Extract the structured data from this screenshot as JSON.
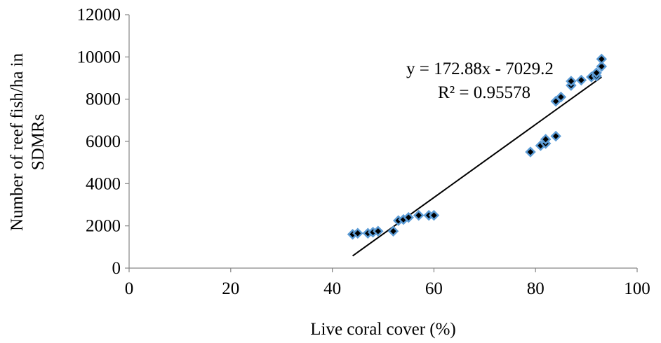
{
  "chart_data": {
    "type": "scatter",
    "title": "",
    "xlabel": "Live coral cover (%)",
    "ylabel_lines": [
      "Number of reef fish/ha in",
      "SDMRs"
    ],
    "xlim": [
      0,
      100
    ],
    "ylim": [
      0,
      12000
    ],
    "xticks": [
      0,
      20,
      40,
      60,
      80,
      100
    ],
    "yticks": [
      0,
      2000,
      4000,
      6000,
      8000,
      10000,
      12000
    ],
    "grid": false,
    "legend": "none",
    "series": [
      {
        "marker": "diamond",
        "marker_fill": "#000000",
        "marker_edge": "#5b9bd5",
        "points": [
          [
            44,
            1600
          ],
          [
            45,
            1650
          ],
          [
            47,
            1650
          ],
          [
            48,
            1700
          ],
          [
            49,
            1750
          ],
          [
            52,
            1750
          ],
          [
            53,
            2250
          ],
          [
            54,
            2300
          ],
          [
            55,
            2400
          ],
          [
            57,
            2500
          ],
          [
            59,
            2500
          ],
          [
            60,
            2500
          ],
          [
            79,
            5500
          ],
          [
            81,
            5800
          ],
          [
            82,
            5900
          ],
          [
            82,
            6100
          ],
          [
            84,
            6250
          ],
          [
            84,
            7900
          ],
          [
            85,
            8100
          ],
          [
            87,
            8650
          ],
          [
            87,
            8850
          ],
          [
            89,
            8900
          ],
          [
            91,
            9050
          ],
          [
            92,
            9100
          ],
          [
            92,
            9250
          ],
          [
            93,
            9550
          ],
          [
            93,
            9900
          ]
        ]
      }
    ],
    "trendline": {
      "slope": 172.88,
      "intercept": -7029.2,
      "x_range": [
        44,
        93
      ],
      "color": "#000000"
    },
    "annotations": {
      "equation": "y = 172.88x - 7029.2",
      "r_squared": "R² = 0.95578"
    }
  }
}
